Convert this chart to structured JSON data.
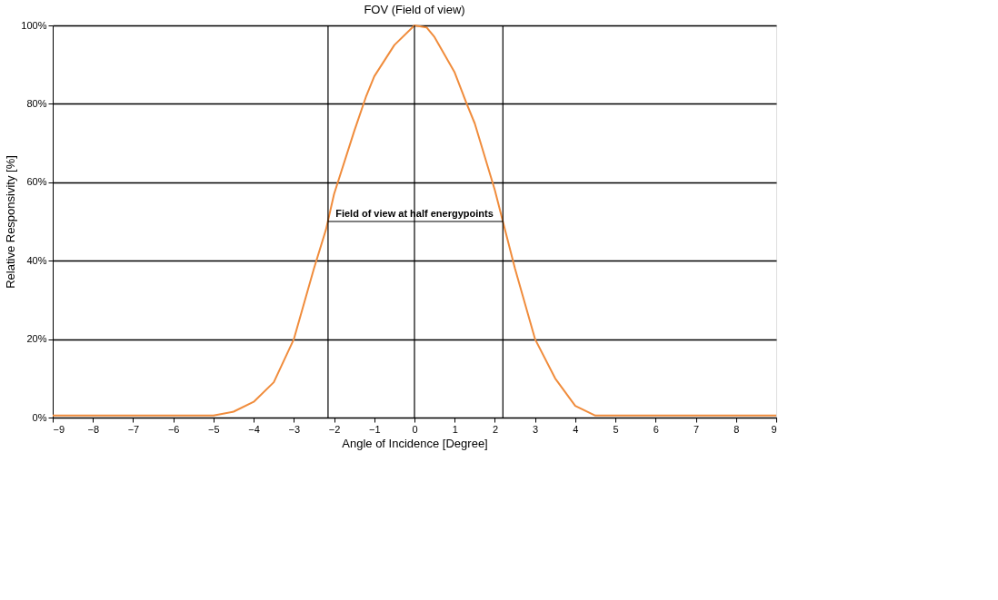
{
  "chart_data": {
    "type": "line",
    "title": "FOV (Field of view)",
    "xlabel": "Angle of Incidence  [Degree]",
    "ylabel": "Relative Responsivity  [%]",
    "series": [
      {
        "color": "#f08c3c",
        "x": [
          -9,
          -7,
          -5,
          -4.5,
          -4,
          -3.5,
          -3,
          -2.5,
          -2.2,
          -2,
          -1.5,
          -1.2,
          -1,
          -0.5,
          0,
          0.3,
          0.5,
          1,
          1.3,
          1.5,
          2,
          2.2,
          2.5,
          3,
          3.5,
          4,
          4.5,
          5,
          7,
          9
        ],
        "values": [
          0.5,
          0.5,
          0.5,
          1.5,
          4,
          9,
          20,
          38,
          48,
          57,
          73,
          82,
          87,
          95,
          100,
          99.5,
          97,
          88,
          80,
          75,
          58,
          50,
          38,
          20,
          10,
          3,
          0.5,
          0.5,
          0.5,
          0.5
        ]
      }
    ],
    "xlim": [
      -9,
      9
    ],
    "xticks": [
      -9,
      -8,
      -7,
      -6,
      -5,
      -4,
      -3,
      -2,
      -1,
      0,
      1,
      2,
      3,
      4,
      5,
      6,
      7,
      8,
      9
    ],
    "ylim": [
      0,
      100
    ],
    "yticks": [
      {
        "value": 0,
        "label": "0%"
      },
      {
        "value": 20,
        "label": "20%"
      },
      {
        "value": 40,
        "label": "40%"
      },
      {
        "value": 60,
        "label": "60%"
      },
      {
        "value": 80,
        "label": "80%"
      },
      {
        "value": 100,
        "label": "100%"
      }
    ],
    "grid": "y",
    "marker": "none",
    "line_style": "solid",
    "ref_lines": [
      {
        "axis": "x",
        "value": -2.15,
        "color": "#000000"
      },
      {
        "axis": "x",
        "value": 0,
        "color": "#000000"
      },
      {
        "axis": "x",
        "value": 2.2,
        "color": "#000000"
      }
    ],
    "annotations": [
      {
        "text": "Field of view at half energypoints",
        "x": 0,
        "y": 50
      }
    ]
  }
}
